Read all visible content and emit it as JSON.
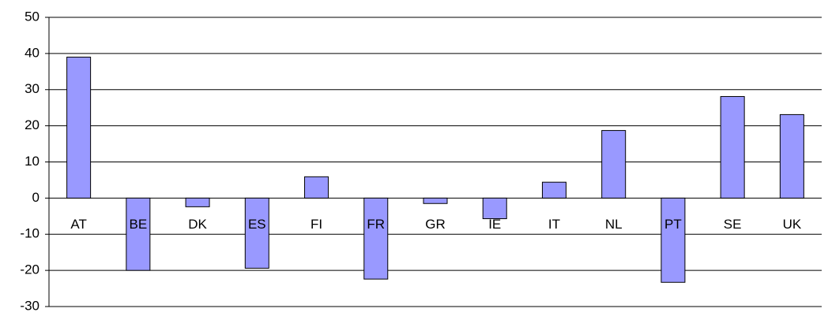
{
  "chart_data": {
    "type": "bar",
    "categories": [
      "AT",
      "BE",
      "DK",
      "ES",
      "FI",
      "FR",
      "GR",
      "IE",
      "IT",
      "NL",
      "PT",
      "SE",
      "UK"
    ],
    "values": [
      39,
      -20,
      -2.4,
      -19.4,
      5.9,
      -22.4,
      -1.5,
      -5.7,
      4.4,
      18.7,
      -23.3,
      28.1,
      23.1
    ],
    "color": "#9999ff",
    "ylim": [
      -30,
      50
    ],
    "yticks": [
      -30,
      -20,
      -10,
      0,
      10,
      20,
      30,
      40,
      50
    ],
    "grid": true
  }
}
